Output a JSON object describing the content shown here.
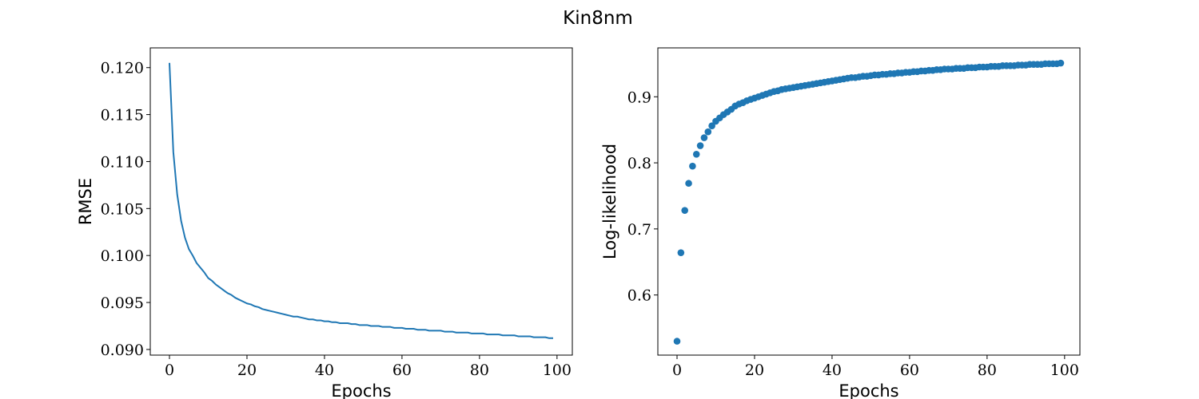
{
  "figure_title": "Kin8nm",
  "colors": {
    "series": "#1f77b4",
    "axes": "#000000",
    "background": "#ffffff"
  },
  "chart_data": [
    {
      "type": "line",
      "title": "",
      "xlabel": "Epochs",
      "ylabel": "RMSE",
      "xlim": [
        -4.95,
        103.95
      ],
      "ylim": [
        0.0894,
        0.1221
      ],
      "xticks": [
        0,
        20,
        40,
        60,
        80,
        100
      ],
      "yticks": [
        0.09,
        0.095,
        0.1,
        0.105,
        0.11,
        0.115,
        0.12
      ],
      "ytick_labels": [
        "0.090",
        "0.095",
        "0.100",
        "0.105",
        "0.110",
        "0.115",
        "0.120"
      ],
      "grid": false,
      "x": [
        0,
        1,
        2,
        3,
        4,
        5,
        6,
        7,
        8,
        9,
        10,
        11,
        12,
        13,
        14,
        15,
        16,
        17,
        18,
        19,
        20,
        21,
        22,
        23,
        24,
        25,
        26,
        27,
        28,
        29,
        30,
        31,
        32,
        33,
        34,
        35,
        36,
        37,
        38,
        39,
        40,
        41,
        42,
        43,
        44,
        45,
        46,
        47,
        48,
        49,
        50,
        51,
        52,
        53,
        54,
        55,
        56,
        57,
        58,
        59,
        60,
        61,
        62,
        63,
        64,
        65,
        66,
        67,
        68,
        69,
        70,
        71,
        72,
        73,
        74,
        75,
        76,
        77,
        78,
        79,
        80,
        81,
        82,
        83,
        84,
        85,
        86,
        87,
        88,
        89,
        90,
        91,
        92,
        93,
        94,
        95,
        96,
        97,
        98,
        99
      ],
      "y": [
        0.1205,
        0.111,
        0.1065,
        0.1037,
        0.1019,
        0.1007,
        0.1,
        0.0992,
        0.0987,
        0.0982,
        0.0976,
        0.0973,
        0.0969,
        0.0966,
        0.0963,
        0.096,
        0.0958,
        0.0955,
        0.0953,
        0.0951,
        0.0949,
        0.0948,
        0.0946,
        0.0945,
        0.0943,
        0.0942,
        0.0941,
        0.094,
        0.0939,
        0.0938,
        0.0937,
        0.0936,
        0.0935,
        0.0935,
        0.0934,
        0.0933,
        0.0932,
        0.0932,
        0.0931,
        0.0931,
        0.093,
        0.093,
        0.0929,
        0.0929,
        0.0928,
        0.0928,
        0.0928,
        0.0927,
        0.0927,
        0.0926,
        0.0926,
        0.0926,
        0.0925,
        0.0925,
        0.0925,
        0.0924,
        0.0924,
        0.0924,
        0.0923,
        0.0923,
        0.0923,
        0.0922,
        0.0922,
        0.0922,
        0.0921,
        0.0921,
        0.0921,
        0.092,
        0.092,
        0.092,
        0.092,
        0.0919,
        0.0919,
        0.0919,
        0.0918,
        0.0918,
        0.0918,
        0.0918,
        0.0917,
        0.0917,
        0.0917,
        0.0917,
        0.0916,
        0.0916,
        0.0916,
        0.0916,
        0.0915,
        0.0915,
        0.0915,
        0.0915,
        0.0914,
        0.0914,
        0.0914,
        0.0914,
        0.0913,
        0.0913,
        0.0913,
        0.0913,
        0.0912,
        0.0912
      ]
    },
    {
      "type": "scatter",
      "title": "",
      "xlabel": "Epochs",
      "ylabel": "Log-likelihood",
      "xlim": [
        -4.95,
        103.95
      ],
      "ylim": [
        0.509,
        0.974
      ],
      "xticks": [
        0,
        20,
        40,
        60,
        80,
        100
      ],
      "yticks": [
        0.6,
        0.7,
        0.8,
        0.9
      ],
      "ytick_labels": [
        "0.6",
        "0.7",
        "0.8",
        "0.9"
      ],
      "grid": false,
      "x": [
        0,
        1,
        2,
        3,
        4,
        5,
        6,
        7,
        8,
        9,
        10,
        11,
        12,
        13,
        14,
        15,
        16,
        17,
        18,
        19,
        20,
        21,
        22,
        23,
        24,
        25,
        26,
        27,
        28,
        29,
        30,
        31,
        32,
        33,
        34,
        35,
        36,
        37,
        38,
        39,
        40,
        41,
        42,
        43,
        44,
        45,
        46,
        47,
        48,
        49,
        50,
        51,
        52,
        53,
        54,
        55,
        56,
        57,
        58,
        59,
        60,
        61,
        62,
        63,
        64,
        65,
        66,
        67,
        68,
        69,
        70,
        71,
        72,
        73,
        74,
        75,
        76,
        77,
        78,
        79,
        80,
        81,
        82,
        83,
        84,
        85,
        86,
        87,
        88,
        89,
        90,
        91,
        92,
        93,
        94,
        95,
        96,
        97,
        98,
        99
      ],
      "y": [
        0.53,
        0.664,
        0.728,
        0.769,
        0.795,
        0.813,
        0.826,
        0.838,
        0.847,
        0.856,
        0.863,
        0.868,
        0.873,
        0.877,
        0.881,
        0.886,
        0.889,
        0.891,
        0.894,
        0.896,
        0.898,
        0.9,
        0.902,
        0.904,
        0.906,
        0.908,
        0.909,
        0.911,
        0.912,
        0.913,
        0.914,
        0.915,
        0.916,
        0.917,
        0.918,
        0.919,
        0.92,
        0.921,
        0.922,
        0.923,
        0.924,
        0.925,
        0.926,
        0.927,
        0.928,
        0.929,
        0.929,
        0.93,
        0.931,
        0.931,
        0.932,
        0.933,
        0.933,
        0.934,
        0.934,
        0.935,
        0.935,
        0.936,
        0.936,
        0.937,
        0.937,
        0.938,
        0.938,
        0.939,
        0.939,
        0.94,
        0.94,
        0.941,
        0.941,
        0.942,
        0.942,
        0.942,
        0.943,
        0.943,
        0.943,
        0.944,
        0.944,
        0.944,
        0.945,
        0.945,
        0.945,
        0.946,
        0.946,
        0.946,
        0.947,
        0.947,
        0.947,
        0.947,
        0.948,
        0.948,
        0.948,
        0.949,
        0.949,
        0.949,
        0.949,
        0.95,
        0.95,
        0.95,
        0.95,
        0.951
      ]
    }
  ]
}
